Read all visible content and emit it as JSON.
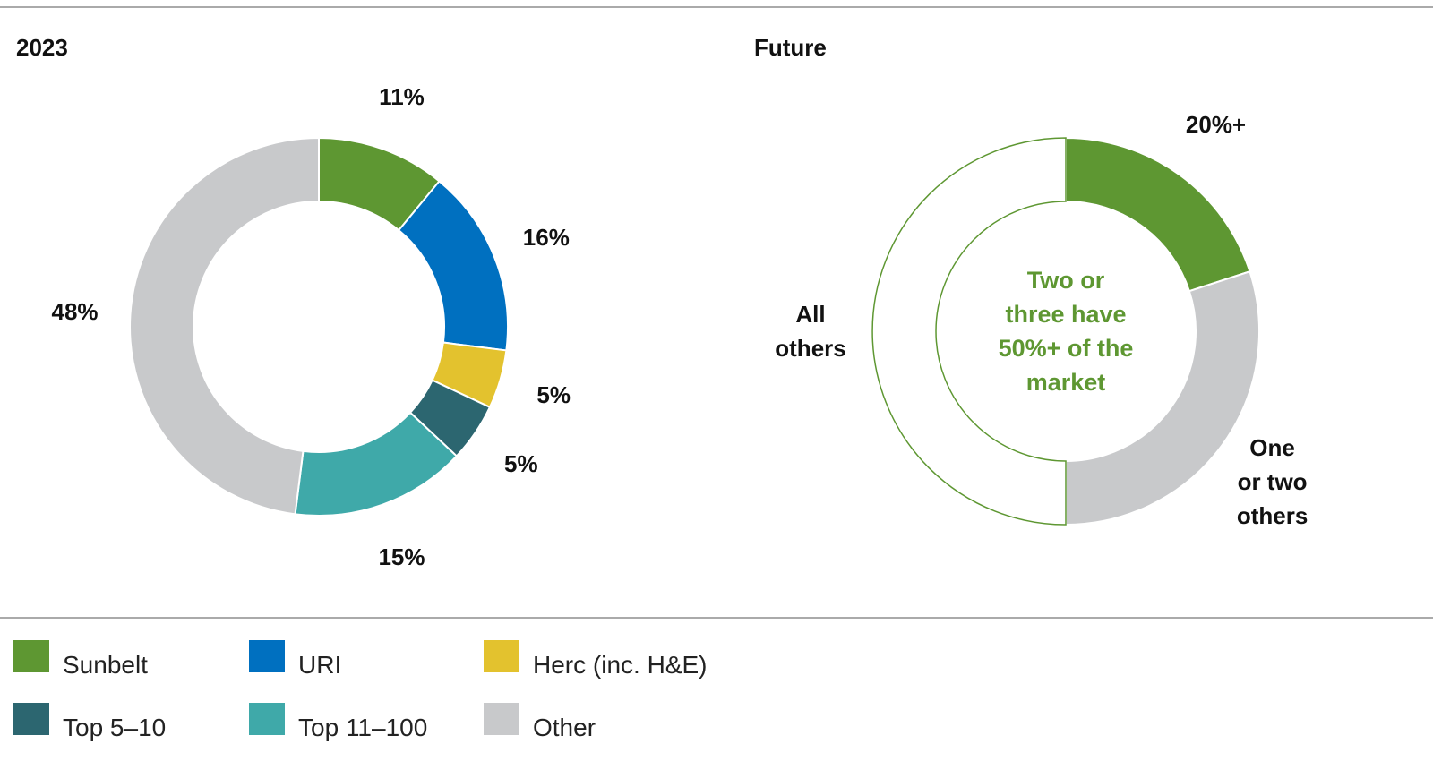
{
  "chart_data": [
    {
      "type": "pie",
      "title": "2023",
      "categories": [
        "Sunbelt",
        "URI",
        "Herc (inc. H&E)",
        "Top 5–10",
        "Top 11–100",
        "Other"
      ],
      "values": [
        11,
        16,
        5,
        5,
        15,
        48
      ],
      "value_labels": [
        "11%",
        "16%",
        "5%",
        "5%",
        "15%",
        "48%"
      ],
      "colors": [
        "#5e9732",
        "#0070c0",
        "#e3c22e",
        "#2c6670",
        "#3fa9a9",
        "#c8c9cb"
      ],
      "legend": "bottom"
    },
    {
      "type": "pie",
      "title": "Future",
      "categories": [
        null,
        "One\nor two\nothers",
        "All\nothers"
      ],
      "values": [
        20,
        30,
        50
      ],
      "value_labels": [
        "20%+",
        null,
        null
      ],
      "colors": [
        "#5e9732",
        "#c8c9cb",
        "#ffffff"
      ],
      "annotation": "Two or\nthree have\n50%+ of the\nmarket"
    }
  ]
}
